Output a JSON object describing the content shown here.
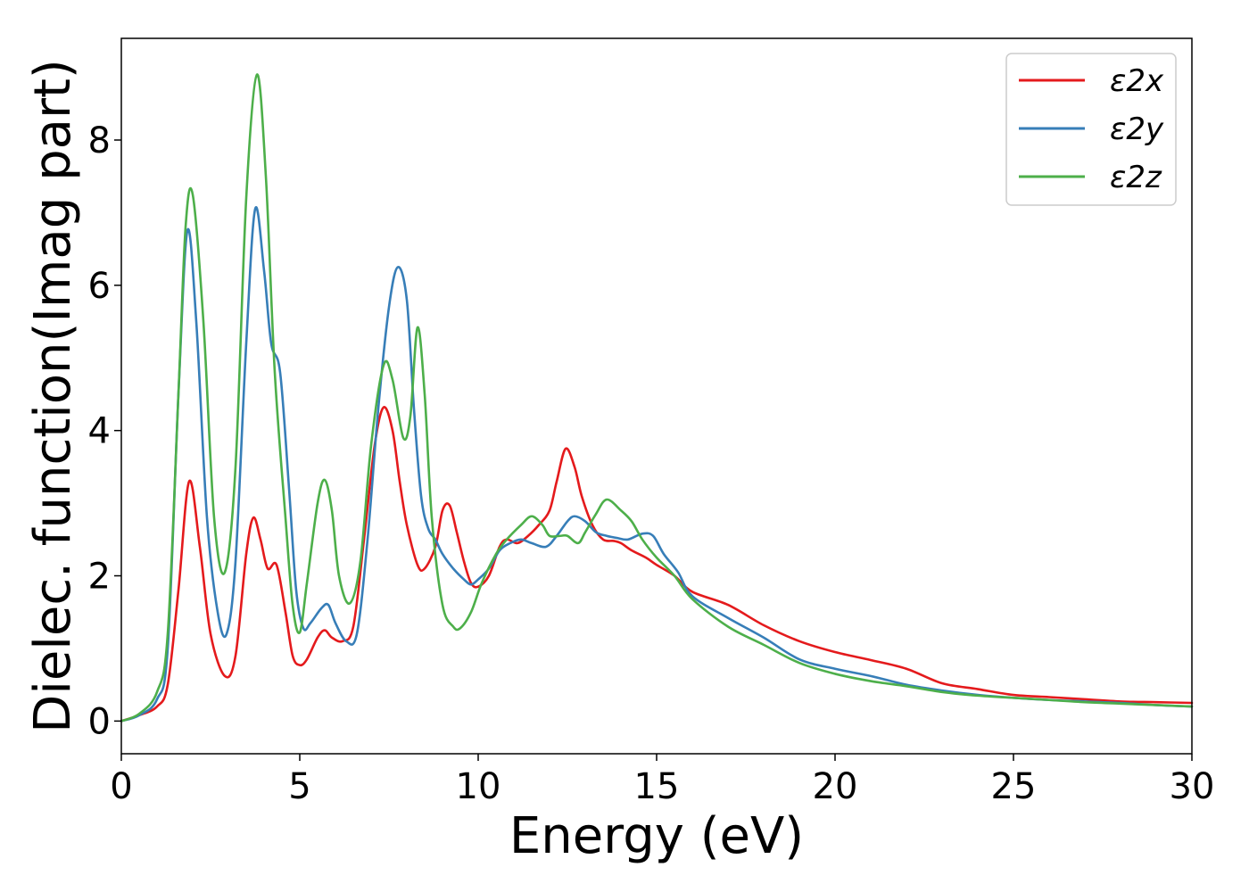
{
  "chart_data": {
    "type": "line",
    "xlabel": "Energy (eV)",
    "ylabel": "Dielec. function(Imag part)",
    "xlim": [
      0,
      30
    ],
    "ylim": [
      -0.45,
      9.4
    ],
    "xticks": [
      0,
      5,
      10,
      15,
      20,
      25,
      30
    ],
    "xtick_labels": [
      "0",
      "5",
      "10",
      "15",
      "20",
      "25",
      "30"
    ],
    "yticks": [
      0,
      2,
      4,
      6,
      8
    ],
    "ytick_labels": [
      "0",
      "2",
      "4",
      "6",
      "8"
    ],
    "grid": false,
    "legend_position": "top-right",
    "series": [
      {
        "name": "ε2x",
        "color": "#e41a1c",
        "x": [
          0,
          0.5,
          1.0,
          1.3,
          1.6,
          1.9,
          2.2,
          2.5,
          2.9,
          3.2,
          3.5,
          3.7,
          3.9,
          4.1,
          4.35,
          4.6,
          4.8,
          5.0,
          5.2,
          5.5,
          5.7,
          5.9,
          6.2,
          6.5,
          6.8,
          7.1,
          7.35,
          7.6,
          7.8,
          8.0,
          8.3,
          8.5,
          8.8,
          9.0,
          9.2,
          9.4,
          9.6,
          9.8,
          10.0,
          10.3,
          10.6,
          10.8,
          11.1,
          11.4,
          11.7,
          12.0,
          12.2,
          12.45,
          12.7,
          12.9,
          13.2,
          13.5,
          13.8,
          14.0,
          14.3,
          14.7,
          15.0,
          15.5,
          16.0,
          17.0,
          18.0,
          19.0,
          20.0,
          21.0,
          22.0,
          23.0,
          24.0,
          25.0,
          26.0,
          27.0,
          28.0,
          29.0,
          30.0
        ],
        "y": [
          0.0,
          0.08,
          0.2,
          0.5,
          1.8,
          3.3,
          2.4,
          1.2,
          0.62,
          0.9,
          2.3,
          2.8,
          2.5,
          2.1,
          2.15,
          1.5,
          0.9,
          0.77,
          0.85,
          1.15,
          1.25,
          1.15,
          1.1,
          1.3,
          2.5,
          3.8,
          4.32,
          4.0,
          3.3,
          2.7,
          2.15,
          2.1,
          2.4,
          2.9,
          2.97,
          2.6,
          2.2,
          1.9,
          1.85,
          2.0,
          2.4,
          2.5,
          2.45,
          2.55,
          2.7,
          2.9,
          3.3,
          3.75,
          3.5,
          3.1,
          2.7,
          2.5,
          2.48,
          2.45,
          2.35,
          2.25,
          2.15,
          2.0,
          1.78,
          1.6,
          1.32,
          1.1,
          0.95,
          0.84,
          0.72,
          0.52,
          0.44,
          0.36,
          0.33,
          0.3,
          0.27,
          0.26,
          0.25
        ]
      },
      {
        "name": "ε2y",
        "color": "#377eb8",
        "x": [
          0,
          0.5,
          1.0,
          1.3,
          1.6,
          1.85,
          2.1,
          2.4,
          2.7,
          2.95,
          3.2,
          3.5,
          3.75,
          4.0,
          4.2,
          4.45,
          4.7,
          4.9,
          5.1,
          5.3,
          5.6,
          5.8,
          6.0,
          6.3,
          6.6,
          6.9,
          7.2,
          7.5,
          7.75,
          8.0,
          8.2,
          8.4,
          8.6,
          8.8,
          9.0,
          9.3,
          9.6,
          9.8,
          10.0,
          10.3,
          10.6,
          10.9,
          11.2,
          11.5,
          11.9,
          12.2,
          12.5,
          12.7,
          13.0,
          13.3,
          13.6,
          13.9,
          14.2,
          14.6,
          14.9,
          15.2,
          15.6,
          16.0,
          17.0,
          18.0,
          19.0,
          20.0,
          21.0,
          22.0,
          23.0,
          24.0,
          25.0,
          26.0,
          27.0,
          28.0,
          29.0,
          30.0
        ],
        "y": [
          0.0,
          0.08,
          0.3,
          1.0,
          4.5,
          6.75,
          5.5,
          2.8,
          1.5,
          1.2,
          2.2,
          5.2,
          7.05,
          6.2,
          5.2,
          4.8,
          3.2,
          1.8,
          1.28,
          1.35,
          1.55,
          1.6,
          1.35,
          1.1,
          1.2,
          2.5,
          4.3,
          5.7,
          6.25,
          5.8,
          4.3,
          3.1,
          2.65,
          2.5,
          2.3,
          2.1,
          1.95,
          1.88,
          1.95,
          2.1,
          2.35,
          2.45,
          2.5,
          2.45,
          2.4,
          2.55,
          2.75,
          2.82,
          2.75,
          2.6,
          2.55,
          2.52,
          2.5,
          2.58,
          2.55,
          2.3,
          2.05,
          1.72,
          1.42,
          1.15,
          0.85,
          0.72,
          0.62,
          0.5,
          0.42,
          0.36,
          0.32,
          0.29,
          0.27,
          0.25,
          0.22,
          0.2
        ]
      },
      {
        "name": "ε2z",
        "color": "#4daf4a",
        "x": [
          0,
          0.5,
          1.0,
          1.3,
          1.6,
          1.8,
          2.0,
          2.3,
          2.6,
          2.9,
          3.2,
          3.5,
          3.8,
          4.05,
          4.3,
          4.6,
          4.8,
          5.0,
          5.2,
          5.5,
          5.7,
          5.9,
          6.1,
          6.4,
          6.7,
          7.0,
          7.35,
          7.6,
          7.9,
          8.1,
          8.3,
          8.5,
          8.7,
          9.0,
          9.3,
          9.5,
          9.8,
          10.1,
          10.5,
          10.8,
          11.2,
          11.5,
          11.8,
          12.0,
          12.3,
          12.5,
          12.8,
          13.0,
          13.3,
          13.6,
          14.0,
          14.3,
          14.6,
          15.0,
          15.5,
          16.0,
          17.0,
          18.0,
          19.0,
          20.0,
          21.0,
          22.0,
          23.0,
          24.0,
          25.0,
          26.0,
          27.0,
          28.0,
          29.0,
          30.0
        ],
        "y": [
          0.0,
          0.1,
          0.4,
          1.2,
          4.5,
          6.8,
          7.25,
          5.5,
          2.8,
          2.05,
          3.5,
          7.2,
          8.9,
          7.5,
          4.8,
          2.8,
          1.6,
          1.22,
          1.9,
          3.0,
          3.32,
          2.9,
          2.0,
          1.62,
          2.2,
          3.8,
          4.9,
          4.7,
          3.9,
          4.2,
          5.42,
          4.5,
          2.8,
          1.6,
          1.3,
          1.28,
          1.5,
          1.9,
          2.3,
          2.5,
          2.7,
          2.82,
          2.7,
          2.55,
          2.55,
          2.55,
          2.45,
          2.6,
          2.85,
          3.05,
          2.9,
          2.75,
          2.5,
          2.25,
          2.0,
          1.68,
          1.3,
          1.05,
          0.8,
          0.65,
          0.55,
          0.48,
          0.4,
          0.35,
          0.32,
          0.29,
          0.26,
          0.24,
          0.22,
          0.2
        ]
      }
    ]
  }
}
